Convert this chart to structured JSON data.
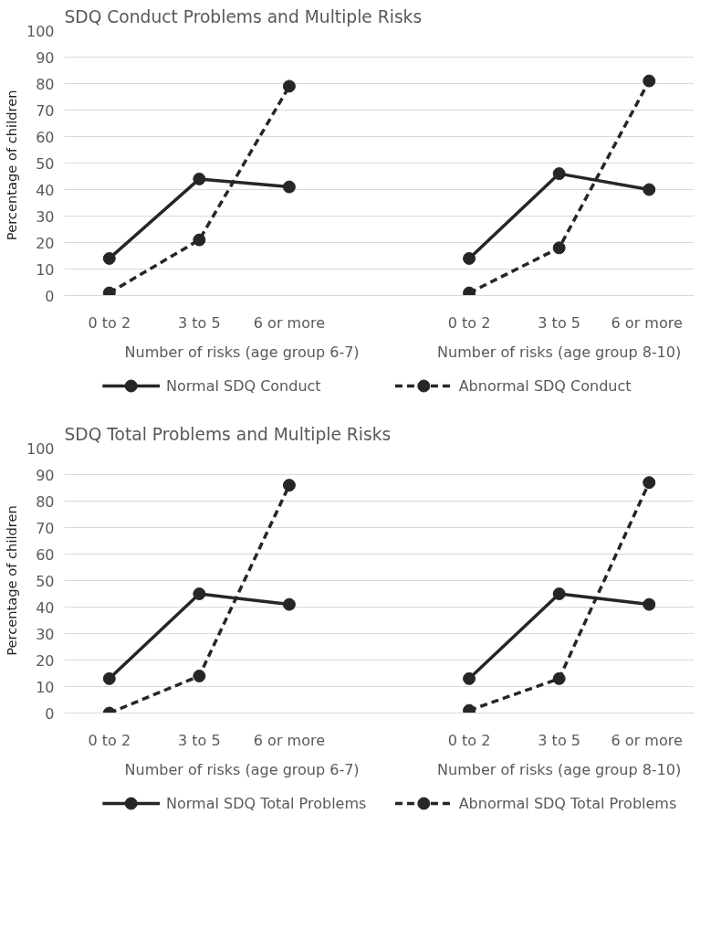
{
  "chart_data": [
    {
      "type": "line",
      "title": "SDQ Conduct Problems and Multiple Risks",
      "ylabel": "Percentage  of children",
      "categories": [
        "0 to 2",
        "3 to 5",
        "6 or more",
        null,
        "0 to 2",
        "3 to 5",
        "6  or more"
      ],
      "series": [
        {
          "name": "Normal SDQ Conduct",
          "color": "#262626",
          "line_style": "solid",
          "values": [
            14,
            44,
            41,
            null,
            14,
            46,
            40
          ]
        },
        {
          "name": "Abnormal SDQ Conduct",
          "color": "#262626",
          "line_style": "dashed",
          "values": [
            1,
            21,
            79,
            null,
            1,
            18,
            81
          ]
        }
      ],
      "annotations": [
        "Number of risks  (age group 6-7)",
        "Number of risks (age group 8-10)"
      ],
      "ylim": [
        0,
        100
      ],
      "yticks": [
        0,
        10,
        20,
        30,
        40,
        50,
        60,
        70,
        80,
        90,
        100
      ],
      "grid": "y",
      "legend": "bottom",
      "marker": "circle"
    },
    {
      "type": "line",
      "title": "SDQ Total Problems and Multiple Risks",
      "ylabel": "Percentage of children",
      "categories": [
        "0 to 2",
        "3 to 5",
        "6 or more",
        null,
        "0 to 2",
        "3 to 5",
        "6  or more"
      ],
      "series": [
        {
          "name": "Normal SDQ Total Problems",
          "color": "#262626",
          "line_style": "solid",
          "values": [
            13,
            45,
            41,
            null,
            13,
            45,
            41
          ]
        },
        {
          "name": "Abnormal SDQ Total Problems",
          "color": "#262626",
          "line_style": "dashed",
          "values": [
            0,
            14,
            86,
            null,
            1,
            13,
            87
          ]
        }
      ],
      "annotations": [
        "Number of risks  (age group 6-7)",
        "Number of risks (age group 8-10)"
      ],
      "ylim": [
        0,
        100
      ],
      "yticks": [
        0,
        10,
        20,
        30,
        40,
        50,
        60,
        70,
        80,
        90,
        100
      ],
      "grid": "y",
      "legend": "bottom",
      "marker": "circle"
    }
  ]
}
